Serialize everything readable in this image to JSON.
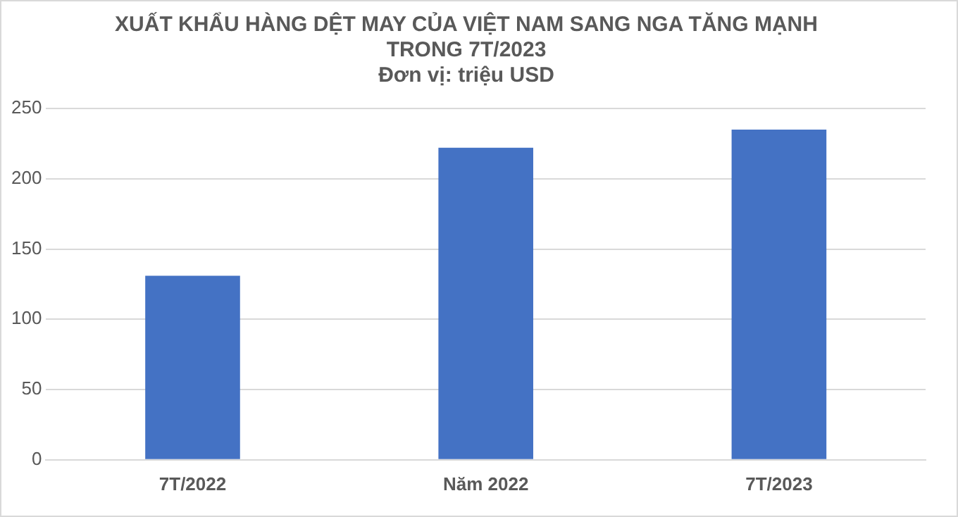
{
  "chart_data": {
    "type": "bar",
    "title": "XUẤT KHẨU HÀNG DỆT MAY CỦA VIỆT NAM SANG NGA TĂNG MẠNH\nTRONG 7T/2023",
    "subtitle": "Đơn vị: triệu USD",
    "categories": [
      "7T/2022",
      "Năm 2022",
      "7T/2023"
    ],
    "values": [
      131,
      222,
      235
    ],
    "color": "#4472c4",
    "ylim": [
      0,
      250
    ],
    "yticks": [
      0,
      50,
      100,
      150,
      200,
      250
    ],
    "grid": "y",
    "legend": false
  }
}
